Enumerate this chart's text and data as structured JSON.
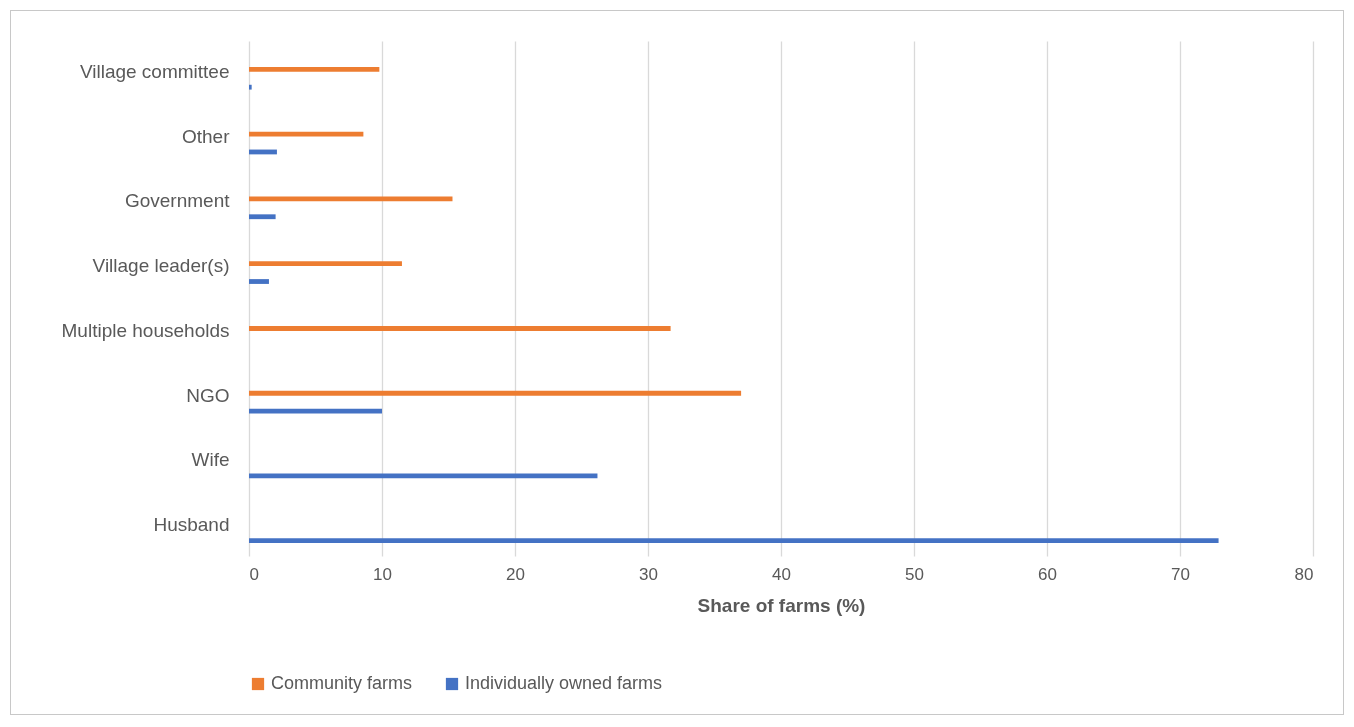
{
  "chart_data": {
    "type": "bar",
    "orientation": "horizontal",
    "xlabel": "Share of farms (%)",
    "categories": [
      "Village committee",
      "Other",
      "Government",
      "Village leader(s)",
      "Multiple households",
      "NGO",
      "Wife",
      "Husband"
    ],
    "series": [
      {
        "name": "Community farms",
        "color": "#ed7d31",
        "values": [
          9.8,
          8.6,
          15.3,
          11.5,
          31.7,
          37.0,
          null,
          null
        ]
      },
      {
        "name": "Individually owned farms",
        "color": "#4472c4",
        "values": [
          0.2,
          2.1,
          2.0,
          1.5,
          null,
          10.0,
          26.2,
          72.9
        ]
      }
    ],
    "xlim": [
      0,
      80
    ],
    "xticks": [
      0,
      10,
      20,
      30,
      40,
      50,
      60,
      70,
      80
    ],
    "grid": "x",
    "legend": "bottom"
  }
}
